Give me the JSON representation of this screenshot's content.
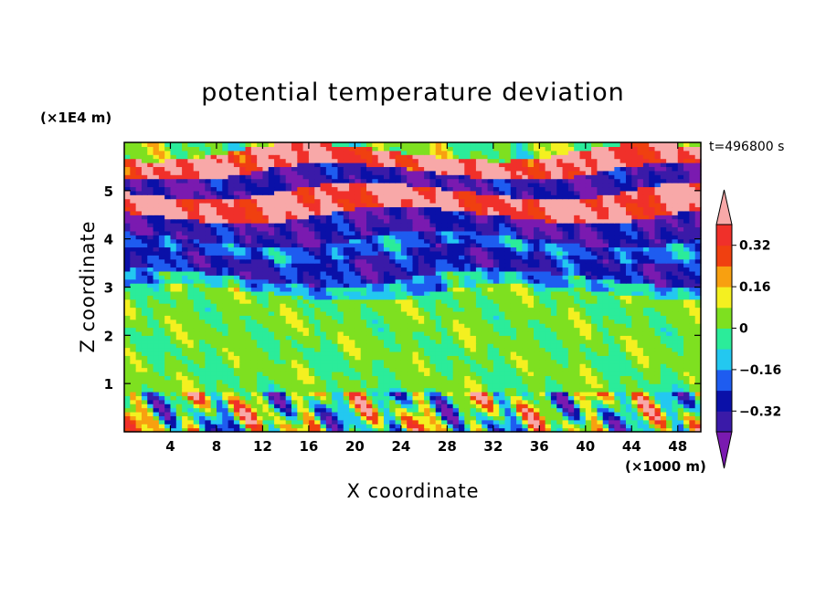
{
  "chart_data": {
    "type": "heatmap",
    "title": "potential temperature deviation",
    "xlabel": "X coordinate",
    "ylabel": "Z coordinate",
    "x_multiplier": "(×1000 m)",
    "y_multiplier": "(×1E4 m)",
    "time_label": "t=496800 s",
    "xlim": [
      0,
      50
    ],
    "ylim": [
      0,
      6
    ],
    "x_ticks": [
      4,
      8,
      12,
      16,
      20,
      24,
      28,
      32,
      36,
      40,
      44,
      48
    ],
    "y_ticks": [
      1,
      2,
      3,
      4,
      5
    ],
    "colorbar": {
      "tick_labels": [
        "0.32",
        "0.16",
        "0",
        "−0.16",
        "−0.32"
      ],
      "tick_values": [
        0.32,
        0.16,
        0,
        -0.16,
        -0.32
      ],
      "levels": [
        -0.4,
        -0.32,
        -0.24,
        -0.16,
        -0.08,
        0,
        0.08,
        0.16,
        0.24,
        0.32,
        0.4
      ],
      "colors": [
        "#7a1ab0",
        "#3a1aa8",
        "#0a10a8",
        "#1e5cf0",
        "#23c8f0",
        "#2bec9a",
        "#7ee020",
        "#f4f020",
        "#f8a010",
        "#f04010",
        "#f0302a",
        "#f8a8a8"
      ]
    },
    "bands": [
      {
        "z": [
          0,
          0.85
        ],
        "value": 0.0
      },
      {
        "z": [
          0.85,
          2.9
        ],
        "value": 0.02
      },
      {
        "z": [
          2.9,
          3.2
        ],
        "value": -0.12
      },
      {
        "z": [
          3.2,
          3.7
        ],
        "value": -0.3
      },
      {
        "z": [
          3.7,
          4.0
        ],
        "value": -0.2
      },
      {
        "z": [
          4.0,
          4.5
        ],
        "value": -0.35
      },
      {
        "z": [
          4.5,
          5.0
        ],
        "value": 0.4
      },
      {
        "z": [
          5.0,
          5.4
        ],
        "value": -0.35
      },
      {
        "z": [
          5.4,
          5.8
        ],
        "value": 0.4
      },
      {
        "z": [
          5.8,
          6.0
        ],
        "value": 0.02
      }
    ]
  }
}
